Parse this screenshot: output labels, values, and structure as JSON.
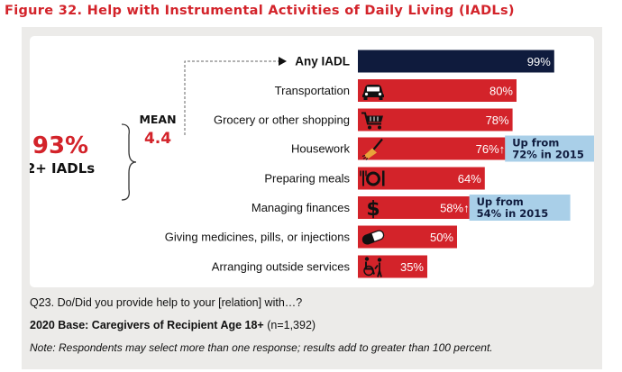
{
  "title": "Figure 32. Help with Instrumental Activities of Daily Living (IADLs)",
  "chart_data": {
    "type": "bar",
    "orientation": "horizontal",
    "categories": [
      "Any IADL",
      "Transportation",
      "Grocery or other shopping",
      "Housework",
      "Preparing meals",
      "Managing finances",
      "Giving medicines, pills, or injections",
      "Arranging outside services"
    ],
    "values": [
      99,
      80,
      78,
      76,
      64,
      58,
      50,
      35
    ],
    "value_labels": [
      "99%",
      "80%",
      "78%",
      "76%↑",
      "64%",
      "58%↑",
      "50%",
      "35%"
    ],
    "icons": [
      "",
      "car-icon",
      "shopping-cart-icon",
      "broom-icon",
      "plate-cutlery-icon",
      "dollar-icon",
      "pill-icon",
      "wheelchair-icon"
    ],
    "bar_colors": [
      "#0f1b3d",
      "#d3232a",
      "#d3232a",
      "#d3232a",
      "#d3232a",
      "#d3232a",
      "#d3232a",
      "#d3232a"
    ],
    "xlim": [
      0,
      100
    ],
    "annotations": [
      {
        "category": "Housework",
        "lines": [
          "Up from",
          "72% in 2015"
        ]
      },
      {
        "category": "Managing finances",
        "lines": [
          "Up from",
          "54% in 2015"
        ]
      }
    ],
    "summary": {
      "percent": "93%",
      "label": "2+ IADLs",
      "mean_label": "MEAN",
      "mean_value": "4.4"
    }
  },
  "colors": {
    "accent_red": "#d3232a",
    "navy": "#0f1b3d",
    "callout": "#a9cfe8"
  },
  "footer": {
    "question": "Q23.   Do/Did you provide help to your [relation] with…?",
    "base_bold": "2020 Base: Caregivers of Recipient Age 18+",
    "base_n": " (n=1,392)",
    "note": "Note: Respondents may select more than one response; results add to greater than 100 percent."
  }
}
